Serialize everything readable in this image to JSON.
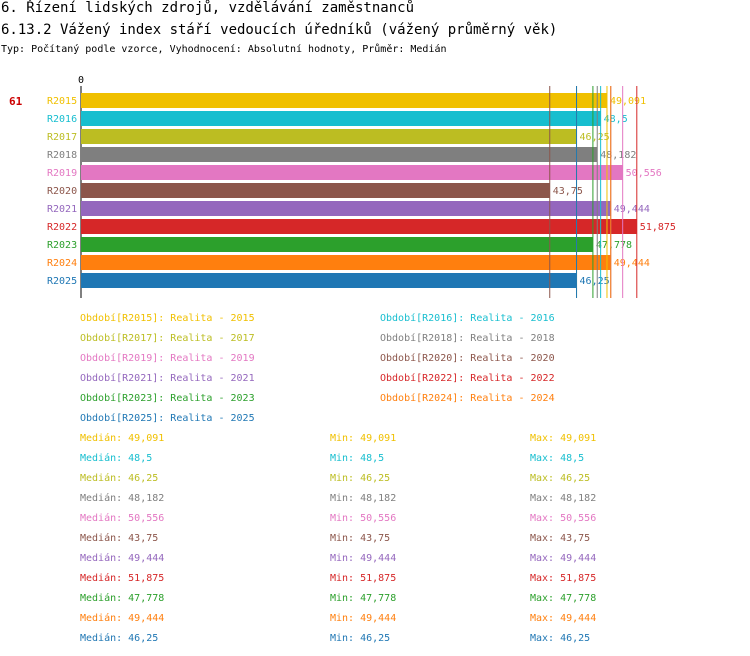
{
  "header": {
    "title1": "6. Řízení lidských zdrojů, vzdělávání zaměstnanců",
    "title2": "6.13.2 Vážený index stáří vedoucích úředníků (vážený průměrný věk)",
    "subtitle": "Typ: Počítaný podle vzorce, Vyhodnocení: Absolutní hodnoty, Průměr: Medián"
  },
  "chart_data": {
    "type": "bar",
    "orientation": "horizontal",
    "row_number": "61",
    "axis_zero_label": "0",
    "xlim": [
      0,
      56
    ],
    "categories": [
      "R2015",
      "R2016",
      "R2017",
      "R2018",
      "R2019",
      "R2020",
      "R2021",
      "R2022",
      "R2023",
      "R2024",
      "R2025"
    ],
    "values": [
      49.091,
      48.5,
      46.25,
      48.182,
      50.556,
      43.75,
      49.444,
      51.875,
      47.778,
      49.444,
      46.25
    ],
    "value_labels": [
      "49,091",
      "48,5",
      "46,25",
      "48,182",
      "50,556",
      "43,75",
      "49,444",
      "51,875",
      "47,778",
      "49,444",
      "46,25"
    ],
    "colors": [
      "#f0c000",
      "#17becf",
      "#bcbd22",
      "#7f7f7f",
      "#e377c2",
      "#8c564b",
      "#9467bd",
      "#d62728",
      "#2ca02c",
      "#ff7f0e",
      "#1f77b4"
    ]
  },
  "legend": [
    {
      "text": "Období[R2015]: Realita - 2015",
      "color": "#f0c000"
    },
    {
      "text": "Období[R2016]: Realita - 2016",
      "color": "#17becf"
    },
    {
      "text": "Období[R2017]: Realita - 2017",
      "color": "#bcbd22"
    },
    {
      "text": "Období[R2018]: Realita - 2018",
      "color": "#7f7f7f"
    },
    {
      "text": "Období[R2019]: Realita - 2019",
      "color": "#e377c2"
    },
    {
      "text": "Období[R2020]: Realita - 2020",
      "color": "#8c564b"
    },
    {
      "text": "Období[R2021]: Realita - 2021",
      "color": "#9467bd"
    },
    {
      "text": "Období[R2022]: Realita - 2022",
      "color": "#d62728"
    },
    {
      "text": "Období[R2023]: Realita - 2023",
      "color": "#2ca02c"
    },
    {
      "text": "Období[R2024]: Realita - 2024",
      "color": "#ff7f0e"
    },
    {
      "text": "Období[R2025]: Realita - 2025",
      "color": "#1f77b4"
    }
  ],
  "stats": [
    {
      "median": "Medián: 49,091",
      "min": "Min: 49,091",
      "max": "Max: 49,091",
      "color": "#f0c000"
    },
    {
      "median": "Medián: 48,5",
      "min": "Min: 48,5",
      "max": "Max: 48,5",
      "color": "#17becf"
    },
    {
      "median": "Medián: 46,25",
      "min": "Min: 46,25",
      "max": "Max: 46,25",
      "color": "#bcbd22"
    },
    {
      "median": "Medián: 48,182",
      "min": "Min: 48,182",
      "max": "Max: 48,182",
      "color": "#7f7f7f"
    },
    {
      "median": "Medián: 50,556",
      "min": "Min: 50,556",
      "max": "Max: 50,556",
      "color": "#e377c2"
    },
    {
      "median": "Medián: 43,75",
      "min": "Min: 43,75",
      "max": "Max: 43,75",
      "color": "#8c564b"
    },
    {
      "median": "Medián: 49,444",
      "min": "Min: 49,444",
      "max": "Max: 49,444",
      "color": "#9467bd"
    },
    {
      "median": "Medián: 51,875",
      "min": "Min: 51,875",
      "max": "Max: 51,875",
      "color": "#d62728"
    },
    {
      "median": "Medián: 47,778",
      "min": "Min: 47,778",
      "max": "Max: 47,778",
      "color": "#2ca02c"
    },
    {
      "median": "Medián: 49,444",
      "min": "Min: 49,444",
      "max": "Max: 49,444",
      "color": "#ff7f0e"
    },
    {
      "median": "Medián: 46,25",
      "min": "Min: 46,25",
      "max": "Max: 46,25",
      "color": "#1f77b4"
    }
  ]
}
